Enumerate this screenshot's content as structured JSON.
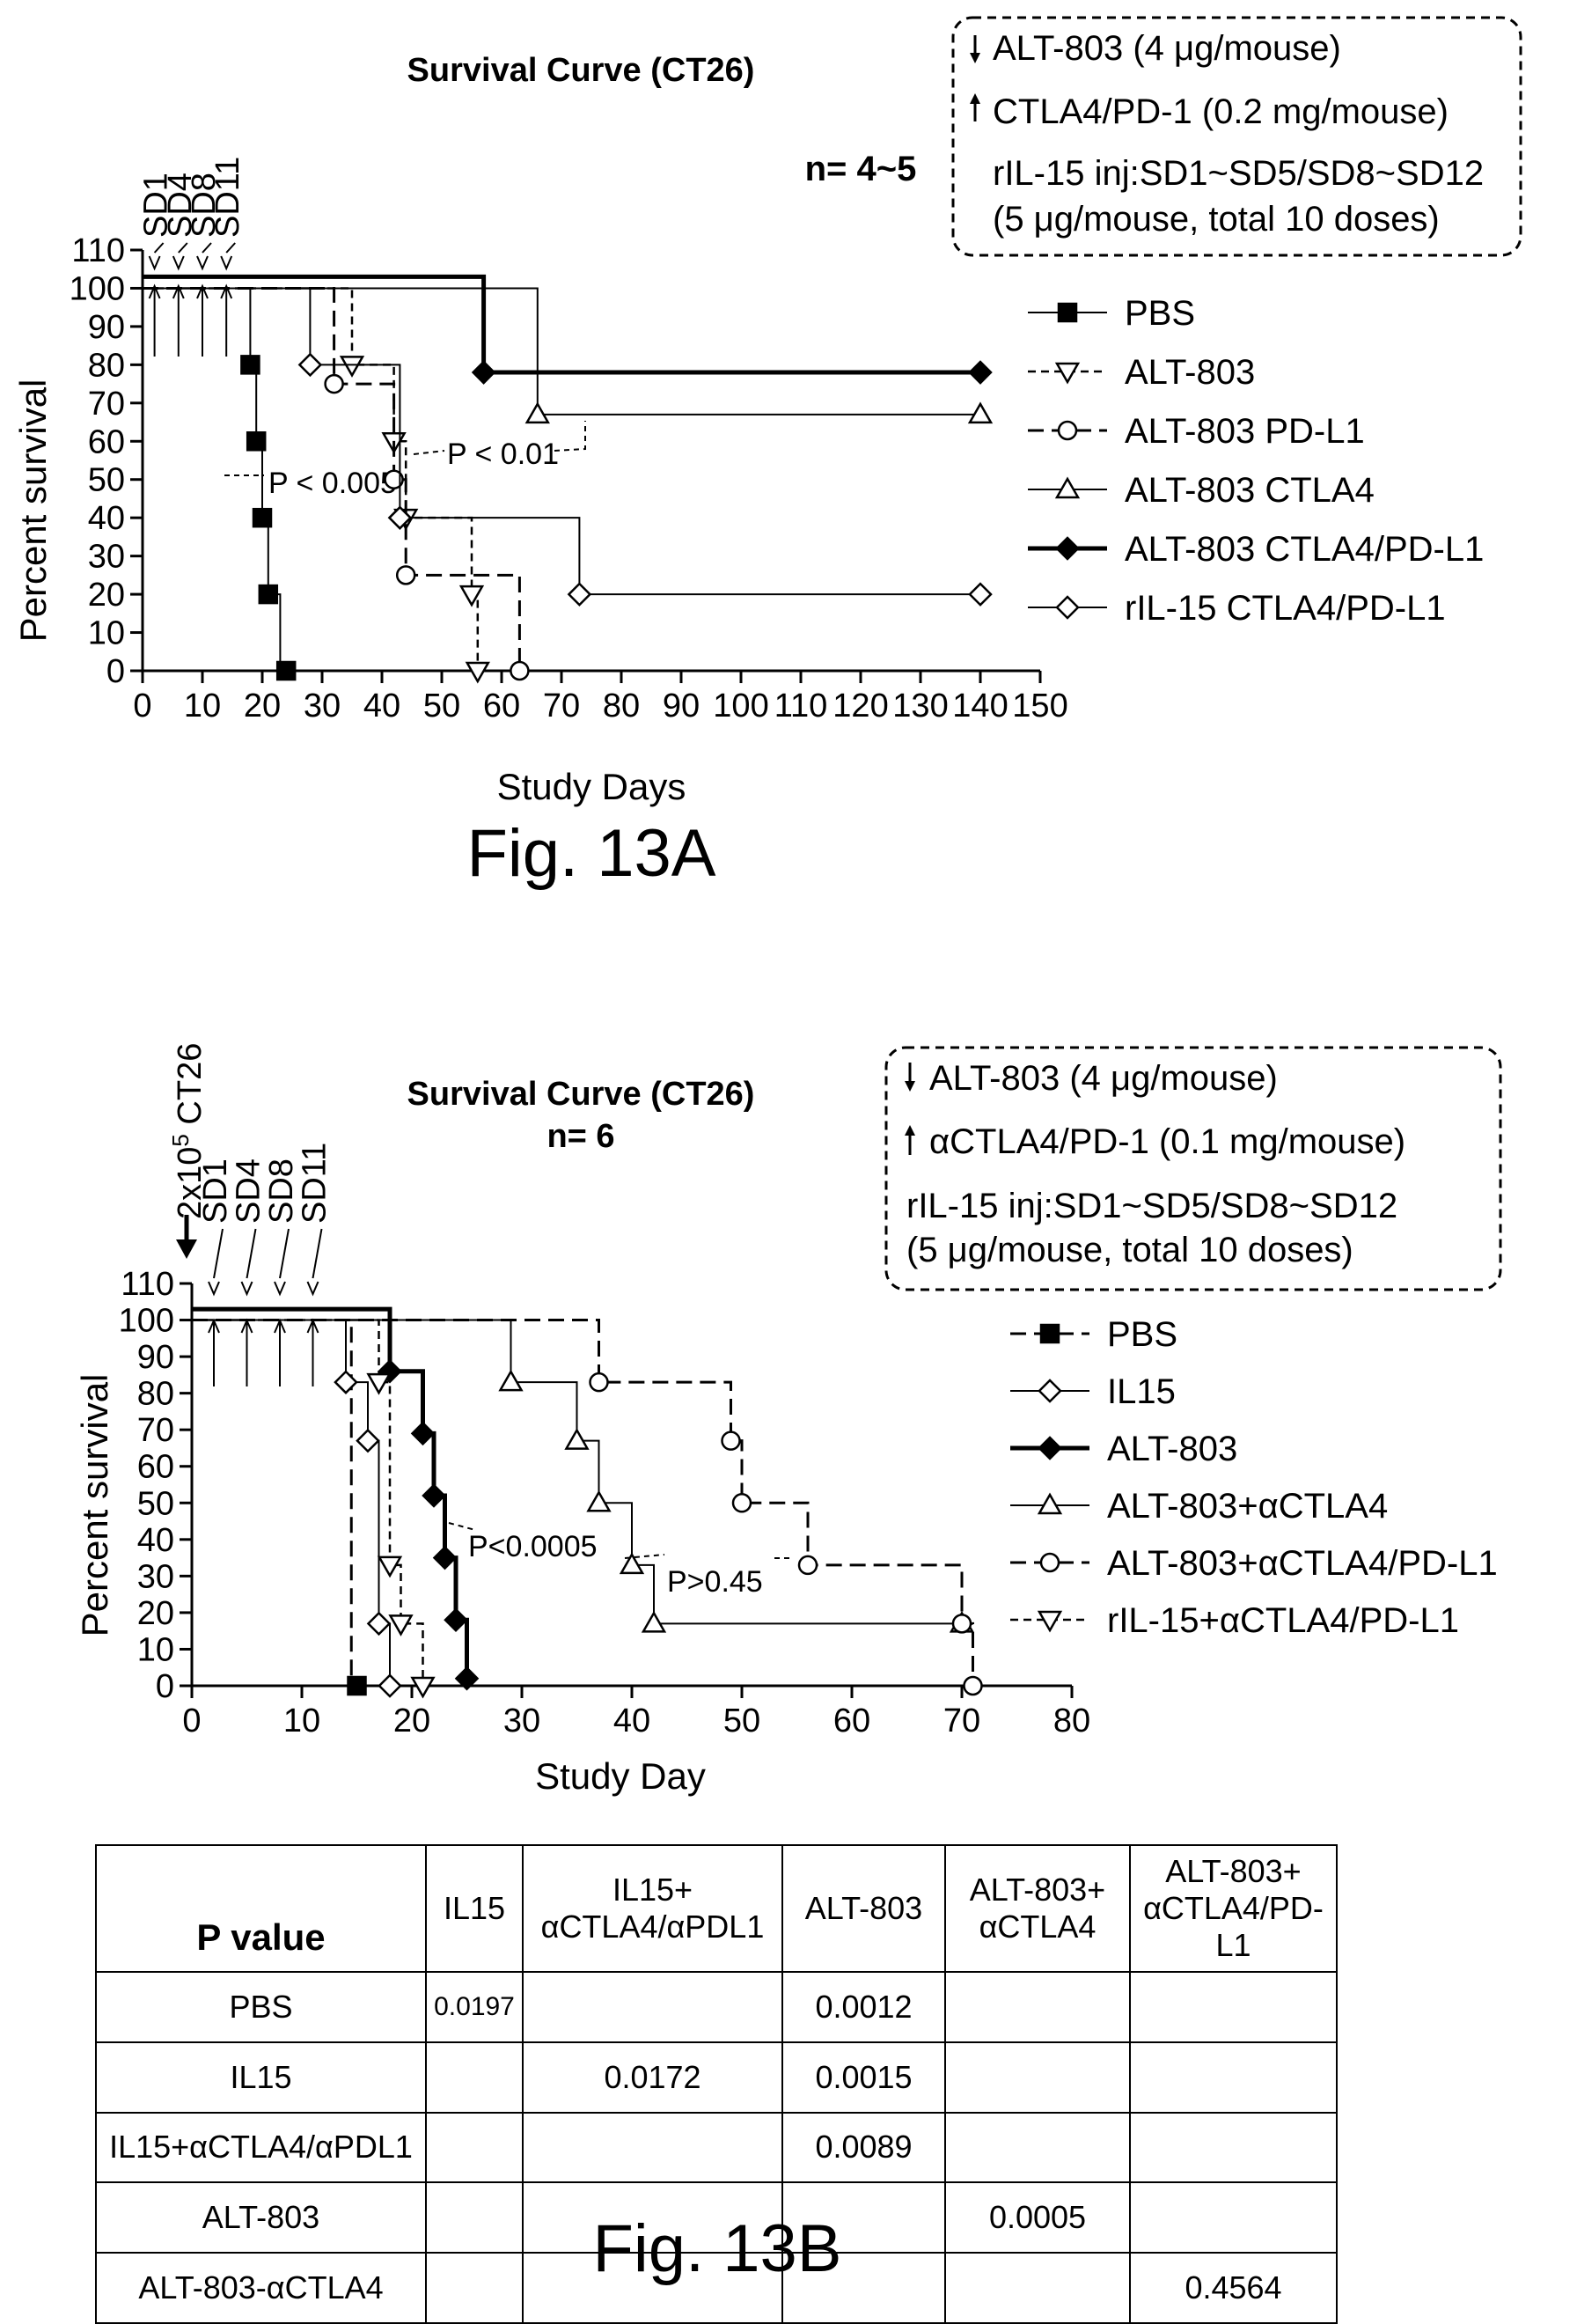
{
  "chart_data": [
    {
      "type": "line",
      "title": "Survival Curve (CT26)",
      "n_label": "n= 4~5",
      "xlabel": "Study Days",
      "ylabel": "Percent survival",
      "xlim": [
        0,
        150
      ],
      "ylim": [
        0,
        110
      ],
      "x_ticks": [
        "0",
        "10",
        "20",
        "30",
        "40",
        "50",
        "60",
        "70",
        "80",
        "90",
        "100",
        "110",
        "120",
        "130",
        "140",
        "150"
      ],
      "y_ticks": [
        "0",
        "10",
        "20",
        "30",
        "40",
        "50",
        "60",
        "70",
        "80",
        "90",
        "100",
        "110"
      ],
      "caption": "Fig. 13A",
      "dose_labels": [
        "SD1",
        "SD4",
        "SD8",
        "SD11"
      ],
      "info_box": [
        "ALT-803 (4 μg/mouse)",
        "CTLA4/PD-1 (0.2 mg/mouse)",
        "rIL-15 inj:SD1~SD5/SD8~SD12",
        "(5 μg/mouse, total 10 doses)"
      ],
      "annotations": [
        "P < 0.005",
        "P < 0.01"
      ],
      "legend": "right",
      "series": [
        {
          "name": "PBS",
          "marker": "square-filled",
          "line": "solid-thin",
          "x": [
            0,
            18,
            19,
            20,
            21,
            23
          ],
          "y": [
            100,
            80,
            60,
            40,
            20,
            0
          ],
          "markers_x": [
            18,
            19,
            20,
            21,
            24
          ]
        },
        {
          "name": "ALT-803",
          "marker": "triangle-down-open",
          "line": "dashed-short",
          "x": [
            0,
            35,
            42,
            44,
            55,
            56
          ],
          "y": [
            100,
            80,
            60,
            40,
            20,
            0
          ],
          "markers_x": [
            35,
            42,
            44,
            55,
            56
          ]
        },
        {
          "name": "ALT-803 PD-L1",
          "marker": "circle-open",
          "line": "dashed-long",
          "x": [
            0,
            32,
            42,
            44,
            63
          ],
          "y": [
            100,
            75,
            50,
            25,
            0
          ],
          "markers_x": [
            32,
            42,
            44,
            63
          ]
        },
        {
          "name": "ALT-803 CTLA4",
          "marker": "triangle-up-open",
          "line": "solid-thin",
          "x": [
            0,
            66,
            140
          ],
          "y": [
            100,
            67,
            67
          ],
          "markers_x": [
            66,
            140
          ]
        },
        {
          "name": "ALT-803 CTLA4/PD-L1",
          "marker": "diamond-filled",
          "line": "solid-thick",
          "x": [
            0,
            57,
            140
          ],
          "y": [
            103,
            78,
            78
          ],
          "markers_x": [
            57,
            140
          ]
        },
        {
          "name": "rIL-15 CTLA4/PD-L1",
          "marker": "diamond-open",
          "line": "solid-thin",
          "x": [
            0,
            28,
            43,
            73,
            140
          ],
          "y": [
            100,
            80,
            40,
            20,
            20
          ],
          "markers_x": [
            28,
            43,
            73,
            140
          ]
        }
      ]
    },
    {
      "type": "line",
      "title": "Survival Curve (CT26)",
      "n_label": "n= 6",
      "xlabel": "Study Day",
      "ylabel": "Percent survival",
      "xlim": [
        0,
        80
      ],
      "ylim": [
        0,
        110
      ],
      "x_ticks": [
        "0",
        "10",
        "20",
        "30",
        "40",
        "50",
        "60",
        "70",
        "80"
      ],
      "y_ticks": [
        "0",
        "10",
        "20",
        "30",
        "40",
        "50",
        "60",
        "70",
        "80",
        "90",
        "100",
        "110"
      ],
      "caption": "Fig. 13B",
      "inoculation_label": "2x10",
      "inoculation_exp": "5",
      "inoculation_suffix": " CT26",
      "dose_labels": [
        "SD1",
        "SD4",
        "SD8",
        "SD11"
      ],
      "info_box": [
        "ALT-803 (4 μg/mouse)",
        "αCTLA4/PD-1 (0.1 mg/mouse)",
        "rIL-15 inj:SD1~SD5/SD8~SD12",
        "(5 μg/mouse, total 10 doses)"
      ],
      "annotations": [
        "P<0.0005",
        "P>0.45"
      ],
      "legend": "right",
      "series": [
        {
          "name": "PBS",
          "marker": "square-filled",
          "line": "dashed-long",
          "x": [
            0,
            14.5
          ],
          "y": [
            100,
            0
          ],
          "markers_x": [
            15
          ]
        },
        {
          "name": "IL15",
          "marker": "diamond-open",
          "line": "solid-thin",
          "x": [
            0,
            14,
            16,
            17,
            18
          ],
          "y": [
            100,
            83,
            67,
            17,
            0
          ],
          "markers_x": [
            14,
            16,
            17,
            18
          ]
        },
        {
          "name": "ALT-803",
          "marker": "diamond-filled",
          "line": "solid-thick",
          "x": [
            0,
            18,
            21,
            22,
            23,
            24,
            25
          ],
          "y": [
            103,
            86,
            69,
            52,
            35,
            18,
            2
          ],
          "markers_x": [
            18,
            21,
            22,
            23,
            24,
            25
          ]
        },
        {
          "name": "ALT-803+αCTLA4",
          "marker": "triangle-up-open",
          "line": "solid-thin",
          "x": [
            0,
            29,
            35,
            37,
            40,
            42,
            70
          ],
          "y": [
            100,
            83,
            67,
            50,
            33,
            17,
            17
          ],
          "markers_x": [
            29,
            35,
            37,
            40,
            42,
            70
          ]
        },
        {
          "name": "ALT-803+αCTLA4/PD-L1",
          "marker": "circle-open",
          "line": "dashed-long",
          "x": [
            0,
            37,
            49,
            50,
            56,
            70,
            71
          ],
          "y": [
            100,
            83,
            67,
            50,
            33,
            17,
            0
          ],
          "markers_x": [
            37,
            49,
            50,
            56,
            70,
            71
          ]
        },
        {
          "name": "rIL-15+αCTLA4/PD-L1",
          "marker": "triangle-down-open",
          "line": "dashed-short",
          "x": [
            0,
            17,
            18,
            19,
            21
          ],
          "y": [
            100,
            83,
            33,
            17,
            0
          ],
          "markers_x": [
            17,
            18,
            19,
            21
          ]
        }
      ]
    },
    {
      "type": "table",
      "corner": "P value",
      "columns": [
        "IL15",
        "IL15+\nαCTLA4/αPDL1",
        "ALT-803",
        "ALT-803+\nαCTLA4",
        "ALT-803+\nαCTLA4/PD-L1"
      ],
      "rows": [
        {
          "label": "PBS",
          "values": [
            "0.0197",
            "",
            "0.0012",
            "",
            ""
          ]
        },
        {
          "label": "IL15",
          "values": [
            "",
            "0.0172",
            "0.0015",
            "",
            ""
          ]
        },
        {
          "label": "IL15+αCTLA4/αPDL1",
          "values": [
            "",
            "",
            "0.0089",
            "",
            ""
          ]
        },
        {
          "label": "ALT-803",
          "values": [
            "",
            "",
            "",
            "0.0005",
            ""
          ]
        },
        {
          "label": "ALT-803-αCTLA4",
          "values": [
            "",
            "",
            "",
            "",
            "0.4564"
          ]
        }
      ]
    }
  ]
}
